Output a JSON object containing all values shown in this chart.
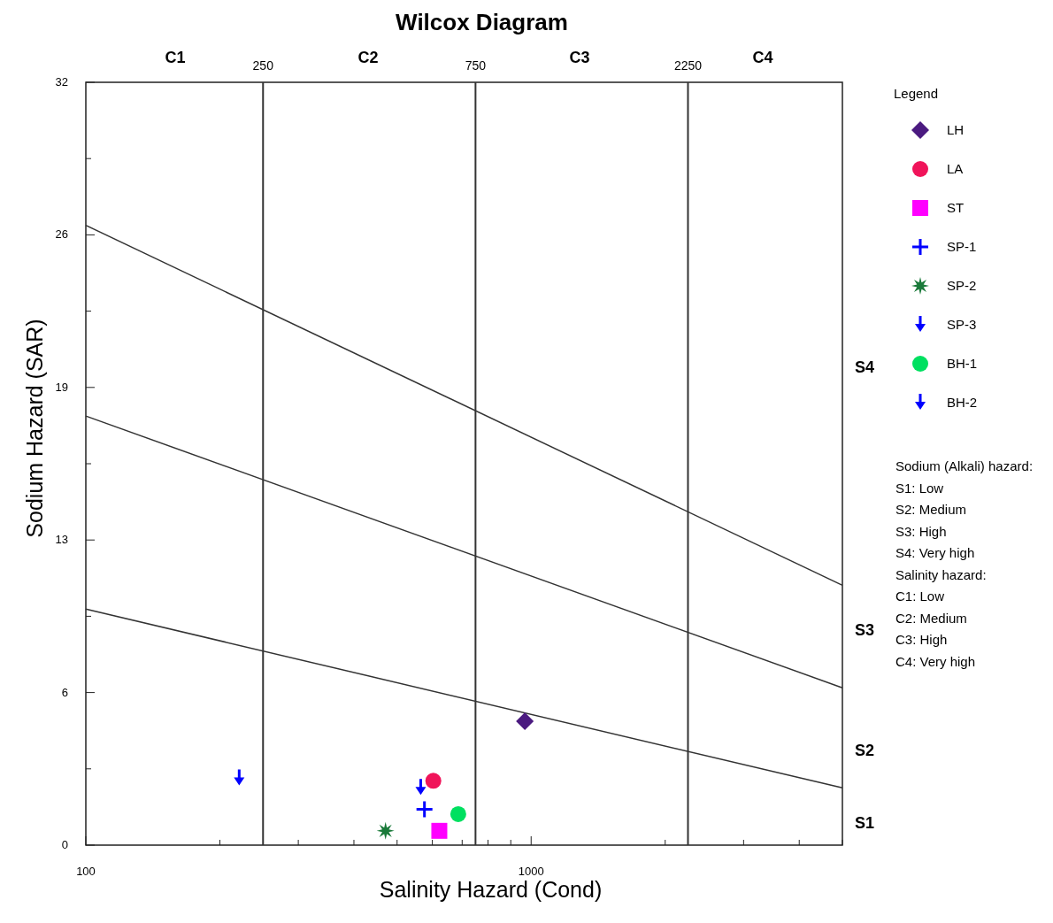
{
  "chart_data": {
    "type": "scatter",
    "title": "Wilcox Diagram",
    "xlabel": "Salinity Hazard (Cond)",
    "ylabel": "Sodium Hazard (SAR)",
    "legend_title": "Legend",
    "legend": "right",
    "grid": false,
    "log": "x",
    "xlim": [
      100,
      5000
    ],
    "ylim": [
      0,
      32
    ],
    "xticks": [
      100,
      {
        "value": 200,
        "label": null
      },
      {
        "value": 300,
        "label": null
      },
      {
        "value": 400,
        "label": null
      },
      {
        "value": 500,
        "label": null
      },
      {
        "value": 600,
        "label": null
      },
      {
        "value": 700,
        "label": null
      },
      {
        "value": 800,
        "label": null
      },
      {
        "value": 900,
        "label": null
      },
      1000,
      {
        "value": 2000,
        "label": null
      },
      {
        "value": 3000,
        "label": null
      },
      {
        "value": 4000,
        "label": null
      },
      {
        "value": 5000,
        "label": null
      }
    ],
    "yticks": [
      0,
      {
        "value": 3.2,
        "label": null
      },
      {
        "value": 6.4,
        "label": "6"
      },
      {
        "value": 9.6,
        "label": null
      },
      {
        "value": 12.8,
        "label": "13"
      },
      {
        "value": 16,
        "label": null
      },
      {
        "value": 19.2,
        "label": "19"
      },
      {
        "value": 22.4,
        "label": null
      },
      {
        "value": 25.6,
        "label": "26"
      },
      {
        "value": 28.8,
        "label": null
      },
      32
    ],
    "ref_lines": [
      {
        "axis": "x",
        "value": 250,
        "label": "250",
        "color": "#333333"
      },
      {
        "axis": "x",
        "value": 750,
        "label": "750",
        "color": "#333333"
      },
      {
        "axis": "x",
        "value": 2250,
        "label": "2250",
        "color": "#333333"
      }
    ],
    "series": [
      {
        "type": "line",
        "x": [
          100,
          5000
        ],
        "values": [
          26,
          10.9
        ],
        "color": "#333333"
      },
      {
        "type": "line",
        "x": [
          100,
          5000
        ],
        "values": [
          18,
          6.6
        ],
        "color": "#333333"
      },
      {
        "type": "line",
        "x": [
          100,
          5000
        ],
        "values": [
          9.9,
          2.4
        ],
        "color": "#333333"
      },
      {
        "name": "LH",
        "x": [
          968
        ],
        "values": [
          5.2
        ],
        "color": "#4b1a80",
        "marker": "diamond"
      },
      {
        "name": "LA",
        "x": [
          603
        ],
        "values": [
          2.7
        ],
        "color": "#f0145a",
        "marker": "circle"
      },
      {
        "name": "ST",
        "x": [
          622
        ],
        "values": [
          0.6
        ],
        "color": "#ff00ff",
        "marker": "square"
      },
      {
        "name": "SP-1",
        "x": [
          576
        ],
        "values": [
          1.5
        ],
        "color": "#0000ff",
        "marker": "cross"
      },
      {
        "name": "SP-2",
        "x": [
          471
        ],
        "values": [
          0.6
        ],
        "color": "#1a7a3a",
        "marker": "star"
      },
      {
        "name": "SP-3",
        "x": [
          565
        ],
        "values": [
          2.4
        ],
        "color": "#0000ff",
        "marker": "triangle"
      },
      {
        "name": "BH-1",
        "x": [
          686
        ],
        "values": [
          1.3
        ],
        "color": "#00e060",
        "marker": "circle"
      },
      {
        "name": "BH-2",
        "x": [
          221
        ],
        "values": [
          2.8
        ],
        "color": "#0000ff",
        "marker": "triangle"
      }
    ],
    "annotations": [
      "C1",
      "C2",
      "C3",
      "C4",
      "S4",
      "S3",
      "S2",
      "S1",
      "Sodium (Alkali) hazard:",
      "S1: Low",
      "S2: Medium",
      "S3: High",
      "S4: Very high",
      "Salinity hazard:",
      "C1: Low",
      "C2: Medium",
      "C3: High",
      "C4: Very high"
    ]
  }
}
